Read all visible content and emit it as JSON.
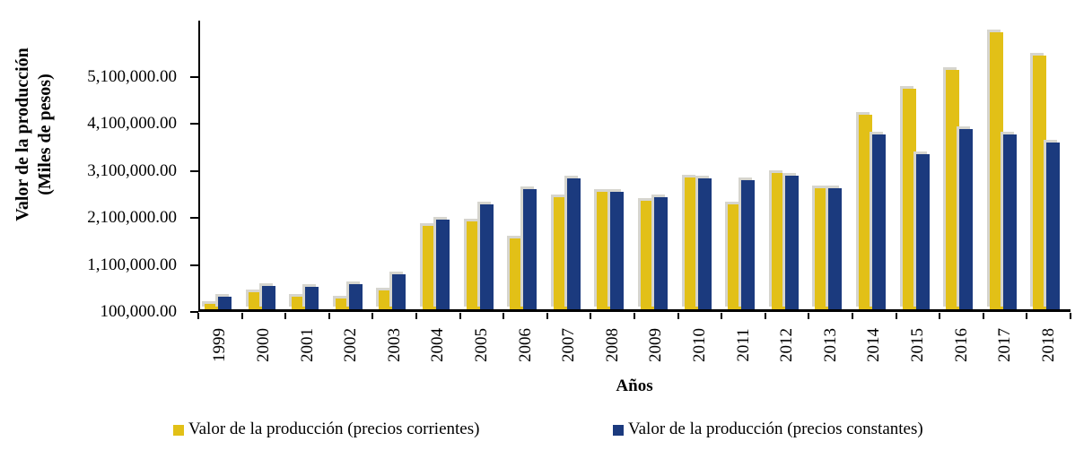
{
  "chart_data": {
    "type": "bar",
    "title": "",
    "xlabel": "Años",
    "ylabel_line1": "Valor de la producción",
    "ylabel_line2": "(Miles de pesos)",
    "categories": [
      "1999",
      "2000",
      "2001",
      "2002",
      "2003",
      "2004",
      "2005",
      "2006",
      "2007",
      "2008",
      "2009",
      "2010",
      "2011",
      "2012",
      "2013",
      "2014",
      "2015",
      "2016",
      "2017",
      "2018"
    ],
    "series": [
      {
        "name": "Valor de la producción (precios corrientes)",
        "color": "#E2C017",
        "values": [
          210000,
          460000,
          360000,
          320000,
          500000,
          1880000,
          1960000,
          1610000,
          2480000,
          2590000,
          2400000,
          2910000,
          2320000,
          3000000,
          2680000,
          4240000,
          4790000,
          5180000,
          5990000,
          5490000
        ]
      },
      {
        "name": "Valor de la producción (precios constantes)",
        "color": "#1B3A7E",
        "values": [
          370000,
          590000,
          580000,
          630000,
          850000,
          2000000,
          2330000,
          2650000,
          2880000,
          2600000,
          2480000,
          2890000,
          2850000,
          2930000,
          2680000,
          3820000,
          3400000,
          3930000,
          3810000,
          3640000
        ]
      }
    ],
    "y_ticks": [
      {
        "value": 100000,
        "label": "100,000.00"
      },
      {
        "value": 1100000,
        "label": "1,100,000.00"
      },
      {
        "value": 2100000,
        "label": "2,100,000.00"
      },
      {
        "value": 3100000,
        "label": "3,100,000.00"
      },
      {
        "value": 4100000,
        "label": "4,100,000.00"
      },
      {
        "value": 5100000,
        "label": "5,100,000.00"
      }
    ],
    "ylim": [
      100000,
      6290000
    ],
    "grid": false,
    "legend_position": "bottom"
  },
  "colors": {
    "background": "#FFFFFF",
    "axis": "#000000",
    "bar_shadow": "#D6D5CE",
    "corrientes": "#E2C017",
    "constantes": "#1B3A7E"
  }
}
